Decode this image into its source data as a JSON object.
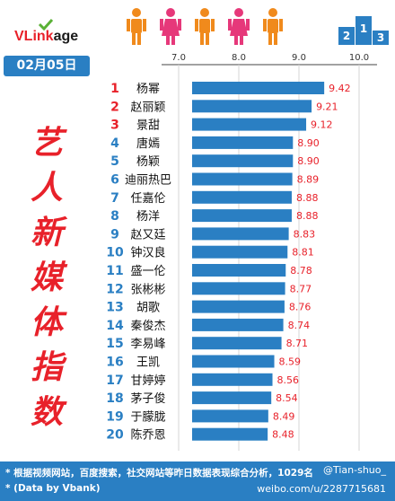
{
  "brand": {
    "name_prefix": "VLink",
    "name_suffix": "age"
  },
  "date_label": "02月05日",
  "side_title": [
    "艺",
    "人",
    "新",
    "媒",
    "体",
    "指",
    "数"
  ],
  "footer": {
    "line1": "* 根据视频网站，百度搜索，社交网站等昨日数据表现综合分析，1029名",
    "line2": "* (Data by Vbank)",
    "watermark1": "@Tian-shuo_",
    "watermark2": "weibo.com/u/2287715681"
  },
  "chart_data": {
    "type": "bar",
    "orientation": "horizontal",
    "xlim": [
      6.5,
      10.0
    ],
    "ticks": [
      "7.0",
      "8.0",
      "9.0",
      "10.0"
    ],
    "tick_values": [
      7.0,
      8.0,
      9.0,
      10.0
    ],
    "ranks": [
      "1",
      "2",
      "3",
      "4",
      "5",
      "6",
      "7",
      "8",
      "9",
      "10",
      "11",
      "12",
      "13",
      "14",
      "15",
      "16",
      "17",
      "18",
      "19",
      "20"
    ],
    "categories": [
      "杨幂",
      "赵丽颖",
      "景甜",
      "唐嫣",
      "杨颖",
      "迪丽热巴",
      "任嘉伦",
      "杨洋",
      "赵又廷",
      "钟汉良",
      "盛一伦",
      "张彬彬",
      "胡歌",
      "秦俊杰",
      "李易峰",
      "王凯",
      "甘婷婷",
      "茅子俊",
      "于朦胧",
      "陈乔恩"
    ],
    "values": [
      9.42,
      9.21,
      9.12,
      8.9,
      8.9,
      8.89,
      8.88,
      8.88,
      8.83,
      8.81,
      8.78,
      8.77,
      8.76,
      8.74,
      8.71,
      8.59,
      8.56,
      8.54,
      8.49,
      8.48
    ],
    "value_labels": [
      "9.42",
      "9.21",
      "9.12",
      "8.90",
      "8.90",
      "8.89",
      "8.88",
      "8.88",
      "8.83",
      "8.81",
      "8.78",
      "8.77",
      "8.76",
      "8.74",
      "8.71",
      "8.59",
      "8.56",
      "8.54",
      "8.49",
      "8.48"
    ],
    "bar_color": "#2a7fc3",
    "rank_colors": {
      "top3": "#e8212a",
      "rest": "#2a7fc3"
    },
    "value_color": "#e8212a",
    "grid": true
  }
}
